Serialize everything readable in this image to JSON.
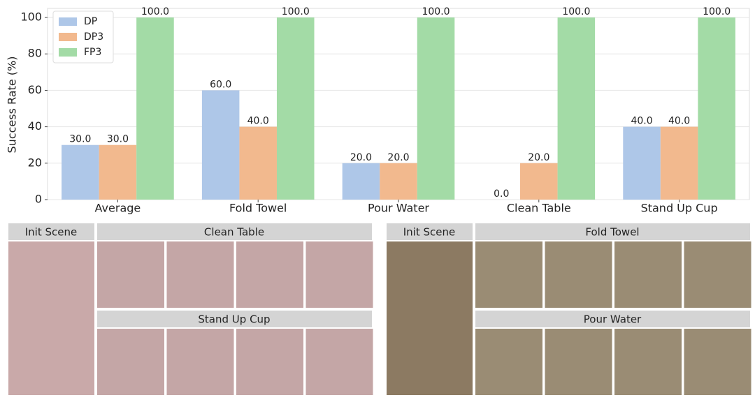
{
  "chart_data": {
    "type": "bar",
    "y_label": "Success Rate (%)",
    "categories": [
      "Average",
      "Fold Towel",
      "Pour Water",
      "Clean Table",
      "Stand Up Cup"
    ],
    "series": [
      {
        "name": "DP",
        "color": "#aec7e8",
        "values": [
          30,
          60,
          20,
          0,
          40
        ],
        "value_labels": [
          "30.0",
          "60.0",
          "20.0",
          "0.0",
          "40.0"
        ]
      },
      {
        "name": "DP3",
        "color": "#f2b98e",
        "values": [
          30,
          40,
          20,
          20,
          40
        ],
        "value_labels": [
          "30.0",
          "40.0",
          "20.0",
          "20.0",
          "40.0"
        ]
      },
      {
        "name": "FP3",
        "color": "#a3dba6",
        "values": [
          100,
          100,
          100,
          100,
          100
        ],
        "value_labels": [
          "100.0",
          "100.0",
          "100.0",
          "100.0",
          "100.0"
        ]
      }
    ],
    "ylim": [
      0,
      105
    ],
    "yticks": [
      0,
      20,
      40,
      60,
      80,
      100
    ],
    "grid": true,
    "legend": "upper left"
  },
  "photo_panels": {
    "left": {
      "init": "Init Scene",
      "rows": [
        "Clean Table",
        "Stand Up Cup"
      ]
    },
    "right": {
      "init": "Init Scene",
      "rows": [
        "Fold Towel",
        "Pour Water"
      ]
    }
  }
}
